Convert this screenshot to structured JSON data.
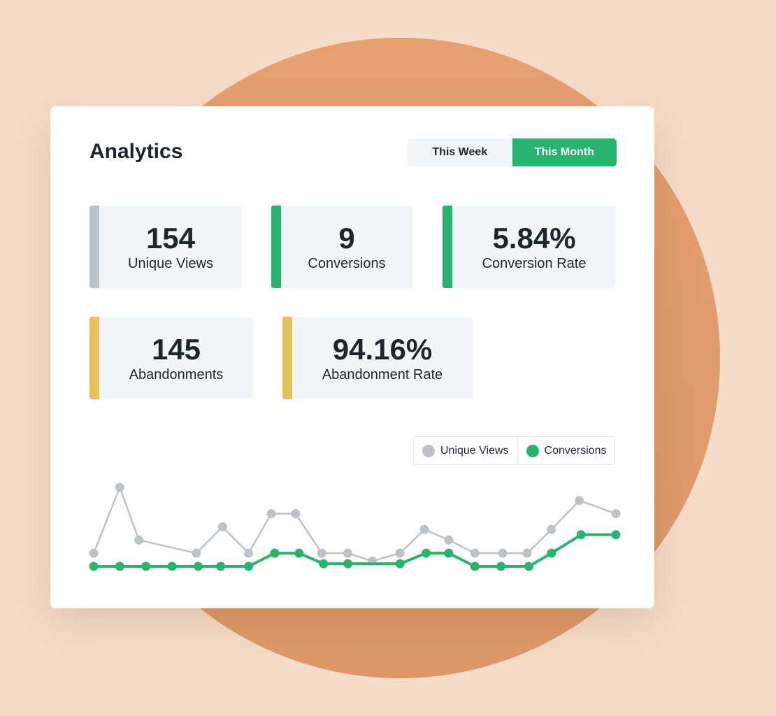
{
  "header": {
    "title": "Analytics"
  },
  "tabs": [
    "This Week",
    "This Month"
  ],
  "active_tab": 1,
  "stats": [
    {
      "value": "154",
      "label": "Unique Views",
      "color": "#bcc3c8"
    },
    {
      "value": "9",
      "label": "Conversions",
      "color": "#27b46e"
    },
    {
      "value": "5.84%",
      "label": "Conversion Rate",
      "color": "#27b46e"
    },
    {
      "value": "145",
      "label": "Abandonments",
      "color": "#e8c05a"
    },
    {
      "value": "94.16%",
      "label": "Abandonment Rate",
      "color": "#e8c05a"
    }
  ],
  "chart_data": {
    "type": "line",
    "xlim": [
      0,
      30
    ],
    "ylim": [
      0,
      6
    ],
    "series": [
      {
        "name": "Unique Views",
        "color": "#bcc3c8",
        "x": [
          0,
          1.5,
          2.6,
          5.9,
          7.4,
          8.9,
          10.2,
          11.6,
          13.1,
          14.6,
          16,
          17.6,
          19,
          20.4,
          21.9,
          23.5,
          24.9,
          26.3,
          27.9,
          30
        ],
        "values": [
          1,
          6,
          2,
          1,
          3,
          1,
          4,
          4,
          1,
          1,
          0.4,
          1,
          2.8,
          2,
          1,
          1,
          1,
          2.8,
          5,
          4
        ]
      },
      {
        "name": "Conversions",
        "color": "#27b46e",
        "x": [
          0,
          1.5,
          3,
          4.5,
          6,
          7.3,
          8.9,
          10.4,
          11.8,
          13.2,
          14.6,
          17.6,
          19.1,
          20.4,
          21.9,
          23.4,
          25,
          26.3,
          28,
          30
        ],
        "values": [
          0,
          0,
          0,
          0,
          0,
          0,
          0,
          1,
          1,
          0.2,
          0.2,
          0.2,
          1,
          1,
          0,
          0,
          0,
          1,
          2.4,
          2.4
        ]
      }
    ]
  }
}
